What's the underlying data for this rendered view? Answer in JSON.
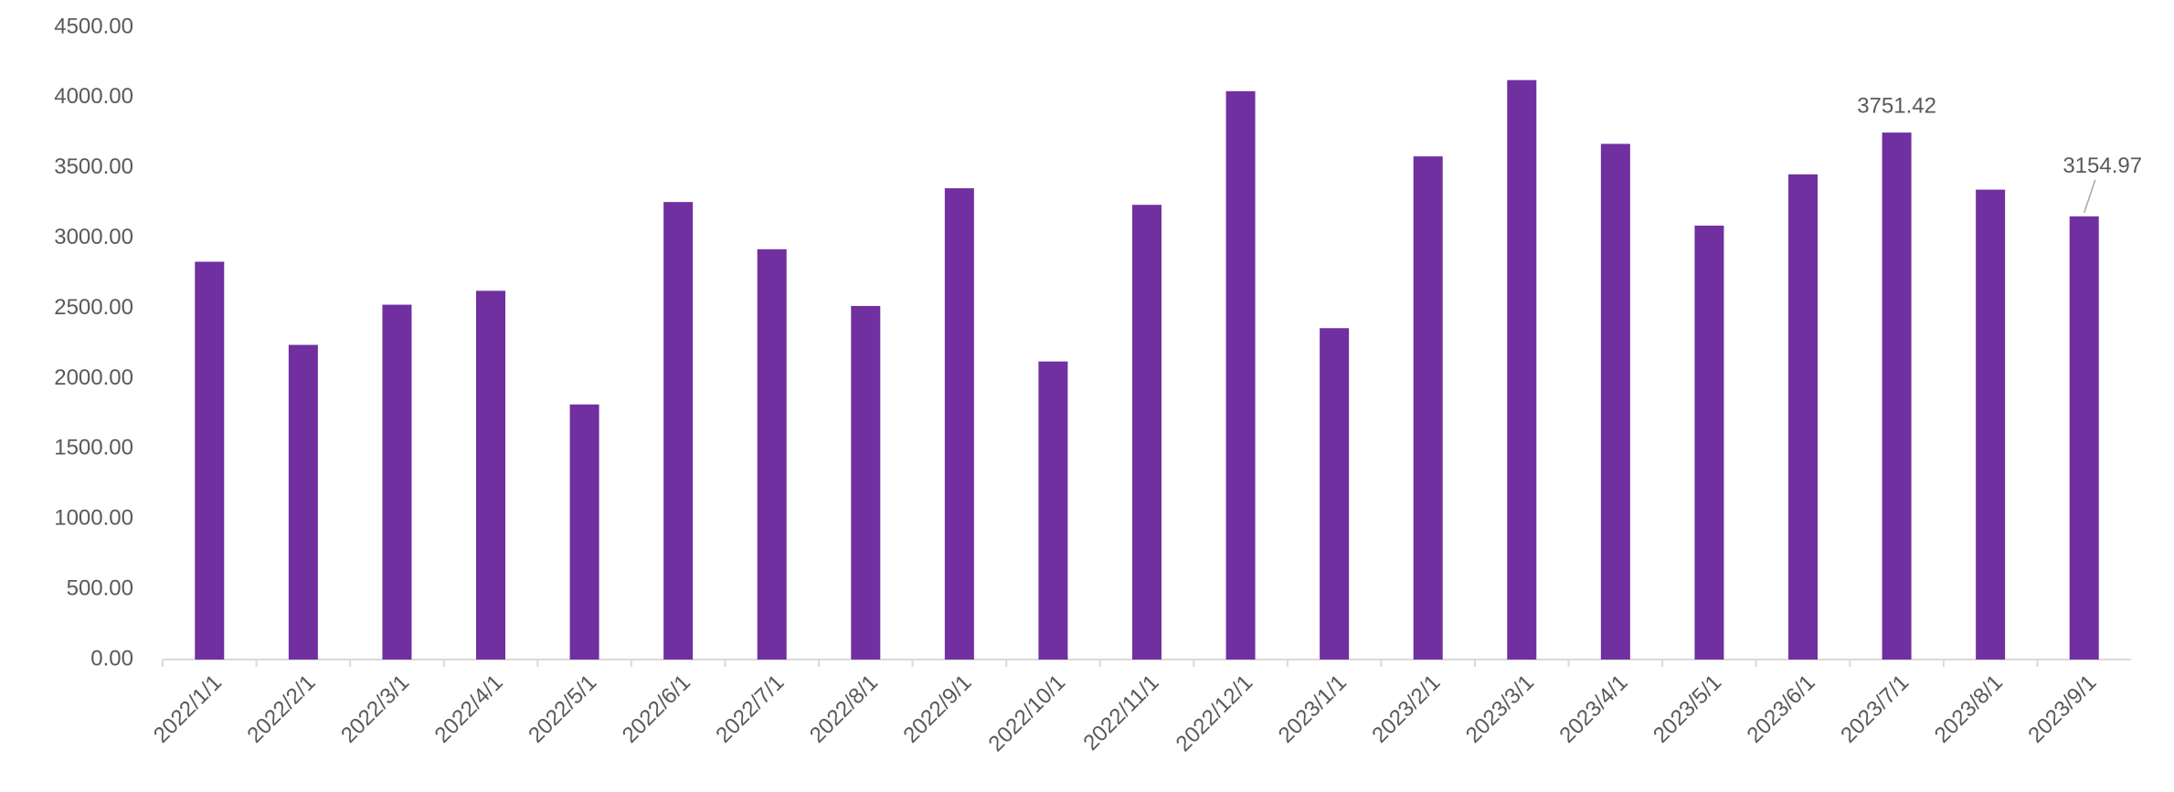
{
  "chart_data": {
    "type": "bar",
    "categories": [
      "2022/1/1",
      "2022/2/1",
      "2022/3/1",
      "2022/4/1",
      "2022/5/1",
      "2022/6/1",
      "2022/7/1",
      "2022/8/1",
      "2022/9/1",
      "2022/10/1",
      "2022/11/1",
      "2022/12/1",
      "2023/1/1",
      "2023/2/1",
      "2023/3/1",
      "2023/4/1",
      "2023/5/1",
      "2023/6/1",
      "2023/7/1",
      "2023/8/1",
      "2023/9/1"
    ],
    "values": [
      2832,
      2240,
      2526,
      2625,
      1816,
      3257,
      2921,
      2517,
      3355,
      2122,
      3237,
      4046,
      2359,
      3582,
      4125,
      3671,
      3089,
      3454,
      3751.42,
      3345,
      3154.97
    ],
    "value_labels": [
      null,
      null,
      null,
      null,
      null,
      null,
      null,
      null,
      null,
      null,
      null,
      null,
      null,
      null,
      null,
      null,
      null,
      null,
      "3751.42",
      null,
      "3154.97"
    ],
    "color": "#7030a0",
    "ylim": [
      0,
      4500
    ],
    "yticks": [
      {
        "value": 0,
        "label": "0.00"
      },
      {
        "value": 500,
        "label": "500.00"
      },
      {
        "value": 1000,
        "label": "1000.00"
      },
      {
        "value": 1500,
        "label": "1500.00"
      },
      {
        "value": 2000,
        "label": "2000.00"
      },
      {
        "value": 2500,
        "label": "2500.00"
      },
      {
        "value": 3000,
        "label": "3000.00"
      },
      {
        "value": 3500,
        "label": "3500.00"
      },
      {
        "value": 4000,
        "label": "4000.00"
      },
      {
        "value": 4500,
        "label": "4500.00"
      }
    ],
    "grid": false
  }
}
